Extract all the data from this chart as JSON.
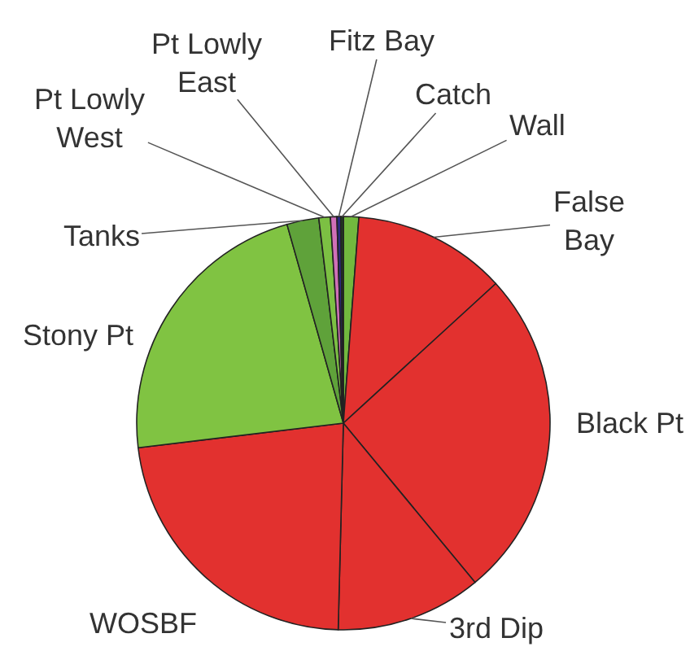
{
  "chart_data": {
    "type": "pie",
    "categories": [
      "Wall",
      "False\nBay",
      "Black Pt",
      "3rd Dip",
      "WOSBF",
      "Stony Pt",
      "Tanks",
      "Pt Lowly\nWest",
      "Pt Lowly\nEast",
      "Fitz Bay",
      "Catch"
    ],
    "values": [
      1.2,
      12.0,
      25.8,
      11.4,
      22.7,
      22.5,
      2.5,
      0.9,
      0.5,
      0.3,
      0.2
    ],
    "colors": [
      "#72b83e",
      "#e2312f",
      "#e2312f",
      "#e2312f",
      "#e2312f",
      "#80c342",
      "#5fa23a",
      "#7cc043",
      "#d070b8",
      "#2a2a80",
      "#204020"
    ]
  }
}
